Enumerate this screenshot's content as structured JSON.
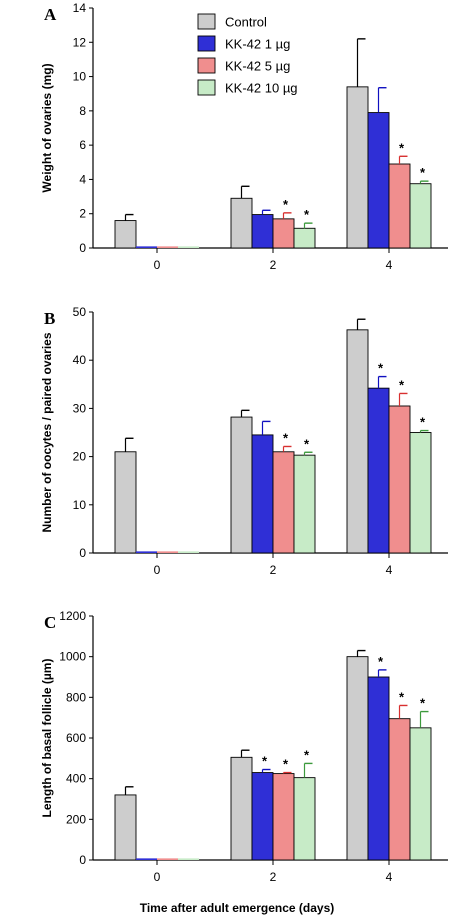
{
  "figure": {
    "xlabel": "Time after adult emergence (days)"
  },
  "chart_data": [
    {
      "panel": "A",
      "type": "bar",
      "categories": [
        "0",
        "2",
        "4"
      ],
      "ylabel": "Weight of ovaries (mg)",
      "ylim": [
        0,
        14
      ],
      "yticks": [
        0,
        2,
        4,
        6,
        8,
        10,
        12,
        14
      ],
      "legend": {
        "placement": "top-left",
        "entries": [
          "Control",
          "KK-42 1 µg",
          "KK-42 5 µg",
          "KK-42 10 µg"
        ]
      },
      "series": [
        {
          "name": "Control",
          "values": [
            1.6,
            2.9,
            9.4
          ],
          "errors": [
            0.35,
            0.7,
            2.8
          ],
          "significant": [
            false,
            false,
            false
          ]
        },
        {
          "name": "KK-42 1 µg",
          "values": [
            0,
            1.95,
            7.9
          ],
          "errors": [
            0,
            0.25,
            1.45
          ],
          "significant": [
            false,
            false,
            false
          ]
        },
        {
          "name": "KK-42 5 µg",
          "values": [
            0,
            1.7,
            4.9
          ],
          "errors": [
            0,
            0.35,
            0.45
          ],
          "significant": [
            false,
            true,
            true
          ]
        },
        {
          "name": "KK-42 10 µg",
          "values": [
            0,
            1.15,
            3.75
          ],
          "errors": [
            0,
            0.3,
            0.15
          ],
          "significant": [
            false,
            true,
            true
          ]
        }
      ]
    },
    {
      "panel": "B",
      "type": "bar",
      "categories": [
        "0",
        "2",
        "4"
      ],
      "ylabel": "Number of oocytes / paired ovaries",
      "ylim": [
        0,
        50
      ],
      "yticks": [
        0,
        10,
        20,
        30,
        40,
        50
      ],
      "series": [
        {
          "name": "Control",
          "values": [
            21,
            28.2,
            46.3
          ],
          "errors": [
            2.8,
            1.4,
            2.2
          ],
          "significant": [
            false,
            false,
            false
          ]
        },
        {
          "name": "KK-42 1 µg",
          "values": [
            0,
            24.5,
            34.2
          ],
          "errors": [
            0,
            2.8,
            2.4
          ],
          "significant": [
            false,
            false,
            true
          ]
        },
        {
          "name": "KK-42 5 µg",
          "values": [
            0,
            21,
            30.5
          ],
          "errors": [
            0,
            1.1,
            2.6
          ],
          "significant": [
            false,
            true,
            true
          ]
        },
        {
          "name": "KK-42 10 µg",
          "values": [
            0,
            20.3,
            25
          ],
          "errors": [
            0,
            0.6,
            0.4
          ],
          "significant": [
            false,
            true,
            true
          ]
        }
      ]
    },
    {
      "panel": "C",
      "type": "bar",
      "categories": [
        "0",
        "2",
        "4"
      ],
      "ylabel": "Length of basal follicle (µm)",
      "ylim": [
        0,
        1200
      ],
      "yticks": [
        0,
        200,
        400,
        600,
        800,
        1000,
        1200
      ],
      "series": [
        {
          "name": "Control",
          "values": [
            320,
            505,
            1000
          ],
          "errors": [
            40,
            35,
            30
          ],
          "significant": [
            false,
            false,
            false
          ]
        },
        {
          "name": "KK-42 1 µg",
          "values": [
            0,
            430,
            900
          ],
          "errors": [
            0,
            15,
            35
          ],
          "significant": [
            false,
            true,
            true
          ]
        },
        {
          "name": "KK-42 5 µg",
          "values": [
            0,
            425,
            695
          ],
          "errors": [
            0,
            5,
            65
          ],
          "significant": [
            false,
            true,
            true
          ]
        },
        {
          "name": "KK-42 10 µg",
          "values": [
            0,
            405,
            650
          ],
          "errors": [
            0,
            70,
            80
          ],
          "significant": [
            false,
            true,
            true
          ]
        }
      ]
    }
  ],
  "colors": {
    "series_fill": [
      "#cdcdcd",
      "#2f2fd6",
      "#f08e8e",
      "#c7ebc7"
    ],
    "series_error": [
      "#000000",
      "#1010c0",
      "#d83030",
      "#3c9a3c"
    ],
    "axis": "#000000"
  }
}
